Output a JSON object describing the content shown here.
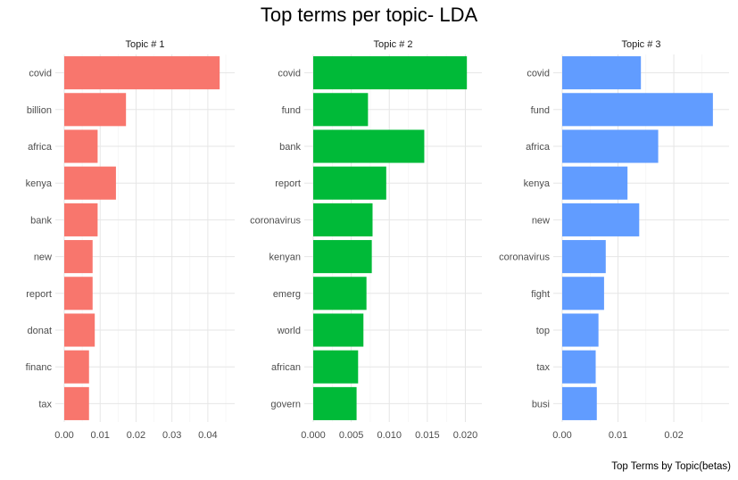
{
  "chart_data": {
    "type": "bar",
    "orientation": "horizontal",
    "title": "Top terms per topic- LDA",
    "caption": "Top Terms by Topic(betas)",
    "grid": true,
    "legend": "none",
    "facets": [
      {
        "label": "Topic # 1",
        "color": "#F8766D",
        "categories": [
          "covid",
          "billion",
          "africa",
          "kenya",
          "bank",
          "new",
          "report",
          "donat",
          "financ",
          "tax"
        ],
        "values": [
          0.0433,
          0.0172,
          0.0093,
          0.0144,
          0.0093,
          0.0079,
          0.0079,
          0.0085,
          0.0069,
          0.0069
        ],
        "xlim": [
          0,
          0.045
        ],
        "ticks": [
          0,
          0.01,
          0.02,
          0.03,
          0.04
        ],
        "tick_labels": [
          "0.00",
          "0.01",
          "0.02",
          "0.03",
          "0.04"
        ]
      },
      {
        "label": "Topic # 2",
        "color": "#00BA38",
        "categories": [
          "covid",
          "fund",
          "bank",
          "report",
          "coronavirus",
          "kenyan",
          "emerg",
          "world",
          "african",
          "govern"
        ],
        "values": [
          0.0202,
          0.0072,
          0.0146,
          0.0096,
          0.0078,
          0.0077,
          0.007,
          0.0066,
          0.0059,
          0.0057
        ],
        "xlim": [
          0,
          0.021
        ],
        "ticks": [
          0,
          0.005,
          0.01,
          0.015,
          0.02
        ],
        "tick_labels": [
          "0.000",
          "0.005",
          "0.010",
          "0.015",
          "0.020"
        ]
      },
      {
        "label": "Topic # 3",
        "color": "#619CFF",
        "categories": [
          "covid",
          "fund",
          "africa",
          "kenya",
          "new",
          "coronavirus",
          "fight",
          "top",
          "tax",
          "busi"
        ],
        "values": [
          0.0141,
          0.027,
          0.0172,
          0.0117,
          0.0138,
          0.0078,
          0.0075,
          0.0065,
          0.006,
          0.0062
        ],
        "xlim": [
          0,
          0.0283
        ],
        "ticks": [
          0,
          0.01,
          0.02
        ],
        "tick_labels": [
          "0.00",
          "0.01",
          "0.02"
        ]
      }
    ]
  }
}
